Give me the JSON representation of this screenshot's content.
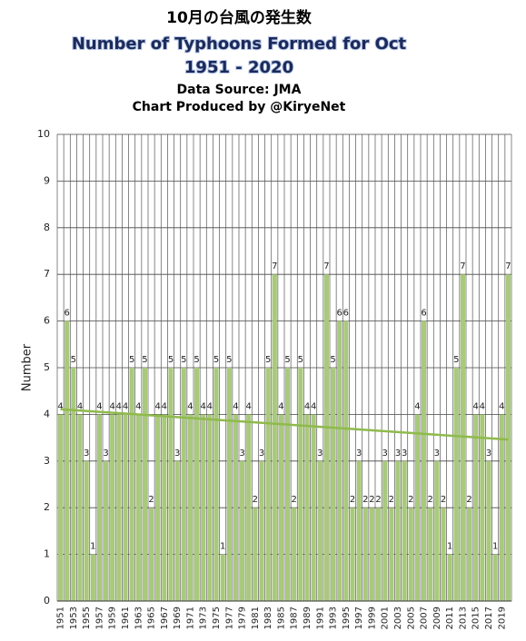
{
  "chart_data": {
    "type": "bar",
    "title": "10月の台風の発生数",
    "subtitle": "Number of Typhoons Formed for Oct",
    "period": "1951 - 2020",
    "source": "Data Source: JMA",
    "credit": "Chart Produced by @KiryeNet",
    "y_label": "Number",
    "categories": [
      "1951",
      null,
      "1953",
      null,
      "1955",
      null,
      "1957",
      null,
      "1959",
      null,
      "1961",
      null,
      "1963",
      null,
      "1965",
      null,
      "1967",
      null,
      "1969",
      null,
      "1971",
      null,
      "1973",
      null,
      "1975",
      null,
      "1977",
      null,
      "1979",
      null,
      "1981",
      null,
      "1983",
      null,
      "1985",
      null,
      "1987",
      null,
      "1989",
      null,
      "1991",
      null,
      "1993",
      null,
      "1995",
      null,
      "1997",
      null,
      "1999",
      null,
      "2001",
      null,
      "2003",
      null,
      "2005",
      null,
      "2007",
      null,
      "2009",
      null,
      "2011",
      null,
      "2013",
      null,
      "2015",
      null,
      "2017",
      null,
      "2019",
      null
    ],
    "values": [
      4,
      6,
      5,
      4,
      3,
      1,
      4,
      3,
      4,
      4,
      4,
      5,
      4,
      5,
      2,
      4,
      4,
      5,
      3,
      5,
      4,
      5,
      4,
      4,
      5,
      1,
      5,
      4,
      3,
      4,
      2,
      3,
      5,
      7,
      4,
      5,
      2,
      5,
      4,
      4,
      3,
      7,
      5,
      6,
      6,
      2,
      3,
      2,
      2,
      2,
      3,
      2,
      3,
      3,
      2,
      4,
      6,
      2,
      3,
      2,
      1,
      5,
      7,
      2,
      4,
      4,
      3,
      1,
      4,
      7
    ],
    "color": "#a9c97c",
    "trendline": true,
    "trend_color": "#8fba4c",
    "ylim": [
      0,
      10
    ],
    "yticks": [
      0,
      1,
      2,
      3,
      4,
      5,
      6,
      7,
      8,
      9,
      10
    ],
    "grid": true
  }
}
